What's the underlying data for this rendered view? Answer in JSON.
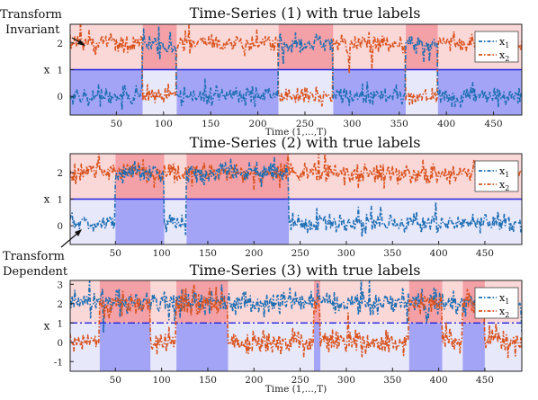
{
  "annotations": {
    "top": [
      "Transform",
      "Invariant"
    ],
    "bottom": [
      "Transform",
      "Dependent"
    ]
  },
  "colors": {
    "x1": "#1f6fb4",
    "x2": "#d9531e",
    "upper_shade_strong": "#f3a0a6",
    "upper_shade_light": "#fbd8d8",
    "lower_shade_strong": "#a4a4f6",
    "lower_shade_light": "#e8e8fb",
    "boundary_line": "#2222dd"
  },
  "chart_data": [
    {
      "type": "line",
      "title": "Time-Series (1) with true labels",
      "xlabel": "Time (1,...,T)",
      "ylabel": "x",
      "xlim": [
        1,
        480
      ],
      "ylim": [
        -0.7,
        2.7
      ],
      "xticks": [
        50,
        100,
        150,
        200,
        250,
        300,
        350,
        400,
        450
      ],
      "yticks": [
        0,
        1,
        2
      ],
      "boundary_y": 1,
      "boundary_style": "solid",
      "legend": {
        "position": "top-right",
        "entries": [
          "x1",
          "x2"
        ]
      },
      "segments": [
        {
          "start": 1,
          "end": 78,
          "state": "normal"
        },
        {
          "start": 78,
          "end": 114,
          "state": "swapped"
        },
        {
          "start": 114,
          "end": 222,
          "state": "normal"
        },
        {
          "start": 222,
          "end": 280,
          "state": "swapped"
        },
        {
          "start": 280,
          "end": 357,
          "state": "normal"
        },
        {
          "start": 357,
          "end": 391,
          "state": "swapped"
        },
        {
          "start": 391,
          "end": 480,
          "state": "normal"
        }
      ],
      "series": [
        {
          "name": "x1",
          "mean_normal": 0.0,
          "mean_swapped": 2.0,
          "noise": 0.18
        },
        {
          "name": "x2",
          "mean_normal": 2.0,
          "mean_swapped": 0.0,
          "noise": 0.18
        }
      ]
    },
    {
      "type": "line",
      "title": "Time-Series (2) with true labels",
      "xlabel": "",
      "ylabel": "x",
      "xlim": [
        1,
        490
      ],
      "ylim": [
        -0.7,
        2.7
      ],
      "xticks": [
        50,
        100,
        150,
        200,
        250,
        300,
        350,
        400,
        450
      ],
      "yticks": [
        0,
        1,
        2
      ],
      "boundary_y": 1,
      "boundary_style": "solid",
      "legend": {
        "position": "top-right",
        "entries": [
          "x1",
          "x2"
        ]
      },
      "segments": [
        {
          "start": 1,
          "end": 50,
          "state": "normal"
        },
        {
          "start": 50,
          "end": 103,
          "state": "high"
        },
        {
          "start": 103,
          "end": 127,
          "state": "normal"
        },
        {
          "start": 127,
          "end": 238,
          "state": "high"
        },
        {
          "start": 238,
          "end": 490,
          "state": "normal"
        }
      ],
      "series": [
        {
          "name": "x1",
          "mean_normal": 0.1,
          "mean_high": 2.0,
          "noise": 0.18
        },
        {
          "name": "x2",
          "mean_normal": 2.0,
          "mean_high": 2.0,
          "noise": 0.18
        }
      ]
    },
    {
      "type": "line",
      "title": "Time-Series (3) with true labels",
      "xlabel": "Time (1,...,T)",
      "ylabel": "x",
      "xlim": [
        1,
        490
      ],
      "ylim": [
        -1.5,
        3.2
      ],
      "xticks": [
        50,
        100,
        150,
        200,
        250,
        300,
        350,
        400,
        450
      ],
      "yticks": [
        -1,
        0,
        1,
        2,
        3
      ],
      "boundary_y": 1,
      "boundary_style": "dash-dot",
      "legend": {
        "position": "top-right",
        "entries": [
          "x1",
          "x2"
        ]
      },
      "segments": [
        {
          "start": 1,
          "end": 33,
          "state": "normal"
        },
        {
          "start": 33,
          "end": 88,
          "state": "low"
        },
        {
          "start": 88,
          "end": 116,
          "state": "normal"
        },
        {
          "start": 116,
          "end": 172,
          "state": "low"
        },
        {
          "start": 172,
          "end": 265,
          "state": "normal"
        },
        {
          "start": 265,
          "end": 272,
          "state": "low"
        },
        {
          "start": 272,
          "end": 368,
          "state": "normal"
        },
        {
          "start": 368,
          "end": 404,
          "state": "low"
        },
        {
          "start": 404,
          "end": 426,
          "state": "normal"
        },
        {
          "start": 426,
          "end": 450,
          "state": "low"
        },
        {
          "start": 450,
          "end": 490,
          "state": "normal"
        }
      ],
      "series": [
        {
          "name": "x1",
          "mean_normal": 2.1,
          "mean_low": 2.1,
          "noise": 0.3
        },
        {
          "name": "x2",
          "mean_normal": 0.0,
          "mean_low": 2.0,
          "noise": 0.3
        }
      ]
    }
  ]
}
